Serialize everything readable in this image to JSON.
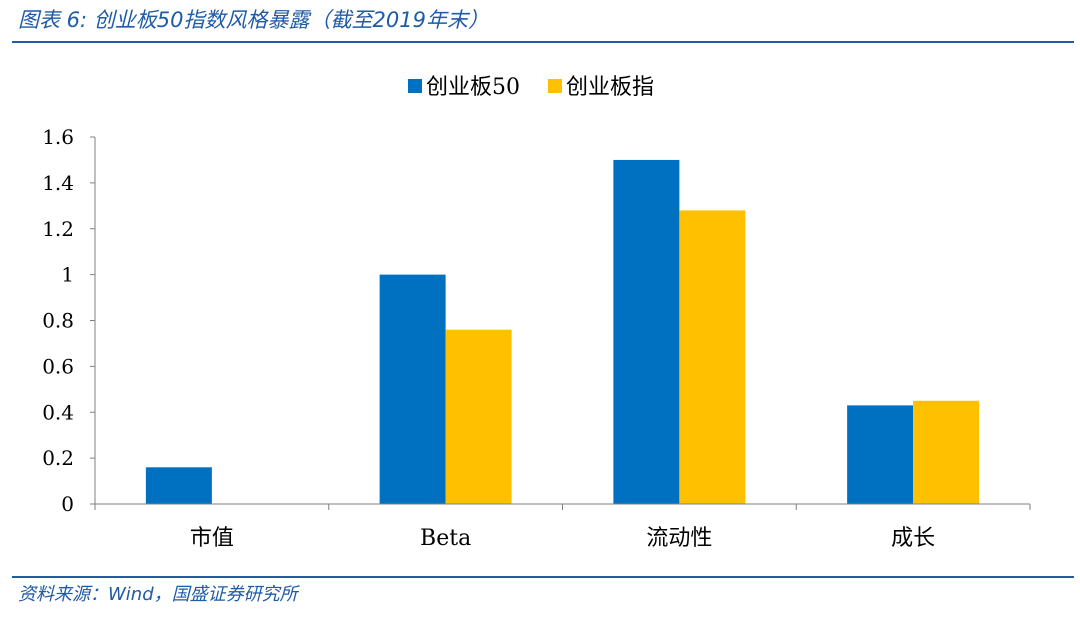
{
  "figure": {
    "title": "图表 6:  创业板50指数风格暴露（截至2019年末）",
    "source": "资料来源：Wind，国盛证券研究所"
  },
  "chart_data": {
    "type": "bar",
    "categories": [
      "市值",
      "Beta",
      "流动性",
      "成长"
    ],
    "series": [
      {
        "name": "创业板50",
        "color": "#0070c0",
        "values": [
          0.16,
          1.0,
          1.5,
          0.43
        ]
      },
      {
        "name": "创业板指",
        "color": "#ffc000",
        "values": [
          0.0,
          0.76,
          1.28,
          0.45
        ]
      }
    ],
    "ylim": [
      0,
      1.6
    ],
    "yticks": [
      "0",
      "0.2",
      "0.4",
      "0.6",
      "0.8",
      "1",
      "1.2",
      "1.4",
      "1.6"
    ],
    "legend_position": "top-center",
    "grid": false
  }
}
